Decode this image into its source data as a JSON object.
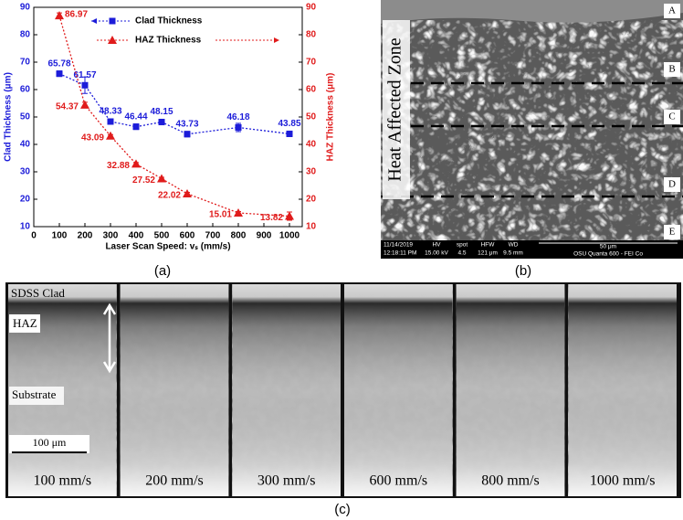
{
  "chart_data": {
    "type": "line",
    "xlabel": "Laser Scan Speed: vₛ (mm/s)",
    "ylabel": "Clad Thickness (μm)",
    "y2label": "HAZ Thickness (μm)",
    "x": [
      100,
      200,
      300,
      400,
      500,
      600,
      800,
      1000
    ],
    "series": [
      {
        "name": "Clad Thickness",
        "color": "#1c1cd9",
        "marker": "square",
        "axis": "y",
        "values": [
          65.78,
          61.57,
          48.33,
          46.44,
          48.15,
          43.73,
          46.18,
          43.85
        ],
        "errors": [
          1,
          3,
          1,
          1,
          1,
          1,
          1.5,
          1
        ]
      },
      {
        "name": "HAZ Thickness",
        "color": "#e01b1b",
        "marker": "triangle",
        "axis": "y2",
        "values": [
          86.97,
          54.37,
          43.09,
          32.88,
          27.52,
          22.02,
          15.01,
          13.82
        ],
        "errors": [
          1,
          1,
          0.5,
          0.5,
          0.5,
          0.5,
          0.5,
          1.5
        ]
      }
    ],
    "xlim": [
      0,
      1050
    ],
    "xticks": [
      0,
      100,
      200,
      300,
      400,
      500,
      600,
      700,
      800,
      900,
      1000
    ],
    "ylim": [
      10,
      90
    ],
    "yticks": [
      10,
      20,
      30,
      40,
      50,
      60,
      70,
      80,
      90
    ],
    "y2lim": [
      10,
      90
    ],
    "y2ticks": [
      10,
      20,
      30,
      40,
      50,
      60,
      70,
      80,
      90
    ],
    "legend": "top"
  },
  "figure": {
    "panel_labels": [
      "(a)",
      "(b)",
      "(c)"
    ],
    "sem": {
      "zone_label": "Heat Affected Zone",
      "markers": [
        "A",
        "B",
        "C",
        "D",
        "E"
      ],
      "date": "11/14/2019",
      "time": "12:18:11 PM",
      "info": [
        {
          "label": "HV",
          "value": "15.00 kV"
        },
        {
          "label": "spot",
          "value": "4.5"
        },
        {
          "label": "HFW",
          "value": "121 μm"
        },
        {
          "label": "WD",
          "value": "9.5 mm"
        }
      ],
      "scale_bar": "50 μm",
      "instrument": "OSU Quanta 600 - FEI Co"
    },
    "micrographs": {
      "region_labels": [
        "SDSS Clad",
        "HAZ",
        "Substrate"
      ],
      "scale_bar": "100 μm",
      "speeds": [
        "100 mm/s",
        "200 mm/s",
        "300 mm/s",
        "600 mm/s",
        "800 mm/s",
        "1000 mm/s"
      ]
    }
  }
}
